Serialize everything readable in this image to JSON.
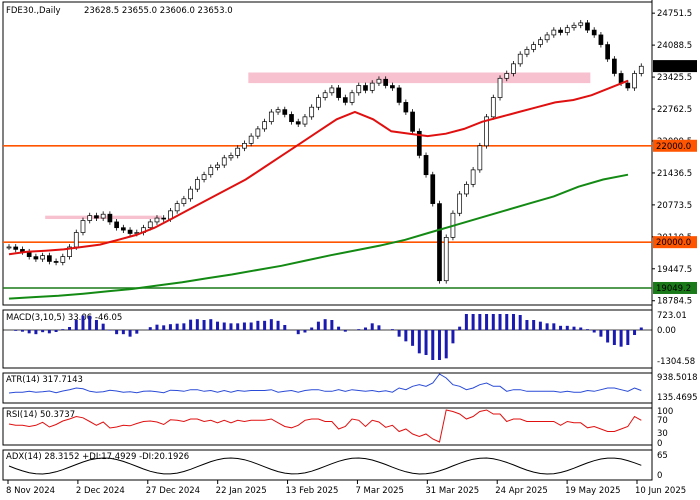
{
  "chart_data": {
    "type": "candlestick",
    "symbol_label": "FDE30.,Daily",
    "ohlc_text": "23628.5 23655.0 23606.0 23653.0",
    "ylim": [
      18800,
      24900
    ],
    "x_labels": [
      "8 Nov 2024",
      "2 Dec 2024",
      "27 Dec 2024",
      "22 Jan 2025",
      "13 Feb 2025",
      "7 Mar 2025",
      "31 Mar 2025",
      "24 Apr 2025",
      "19 May 2025",
      "10 Jun 2025"
    ],
    "y_ticks": [
      "24751.5",
      "24088.5",
      "23425.5",
      "22762.5",
      "22099.5",
      "21436.5",
      "20773.5",
      "20110.5",
      "19447.5",
      "18784.5"
    ],
    "last_price": "23653.0",
    "levels": [
      {
        "value": 22000,
        "label": "22000.0",
        "color": "#ff5500"
      },
      {
        "value": 20000,
        "label": "20000.0",
        "color": "#ff5500"
      },
      {
        "value": 19049.2,
        "label": "19049.2",
        "color": "#1a7a1a"
      }
    ],
    "zones": [
      {
        "from": 20480,
        "to": 20550,
        "start": 0.065,
        "end": 0.245
      },
      {
        "from": 23300,
        "to": 23520,
        "start": 0.378,
        "end": 0.905
      }
    ],
    "candles": [
      19900,
      19850,
      19800,
      19700,
      19650,
      19720,
      19600,
      19580,
      19700,
      19900,
      20200,
      20450,
      20550,
      20500,
      20580,
      20420,
      20300,
      20250,
      20180,
      20200,
      20300,
      20420,
      20500,
      20480,
      20650,
      20800,
      20900,
      21100,
      21300,
      21400,
      21550,
      21600,
      21750,
      21800,
      21950,
      22050,
      22200,
      22350,
      22500,
      22700,
      22750,
      22650,
      22500,
      22450,
      22600,
      22800,
      23000,
      23100,
      23200,
      23000,
      22900,
      23100,
      23250,
      23150,
      23300,
      23380,
      23250,
      23200,
      22900,
      22700,
      22300,
      21800,
      21400,
      20800,
      19200,
      20100,
      20600,
      21000,
      21200,
      21500,
      22000,
      22600,
      23000,
      23400,
      23500,
      23700,
      23900,
      24000,
      24100,
      24200,
      24300,
      24400,
      24350,
      24450,
      24500,
      24550,
      24400,
      24300,
      24100,
      23800,
      23500,
      23300,
      23200,
      23500,
      23650
    ],
    "ma_red": [
      19750,
      19800,
      19820,
      19850,
      19900,
      19950,
      20050,
      20150,
      20300,
      20500,
      20700,
      20900,
      21100,
      21300,
      21550,
      21800,
      22050,
      22300,
      22550,
      22700,
      22550,
      22300,
      22250,
      22200,
      22250,
      22350,
      22500,
      22600,
      22700,
      22800,
      22900,
      22950,
      23050,
      23200,
      23350
    ],
    "ma_green": [
      18830,
      18860,
      18890,
      18930,
      18980,
      19030,
      19100,
      19170,
      19250,
      19330,
      19420,
      19510,
      19620,
      19730,
      19830,
      19930,
      20050,
      20200,
      20350,
      20500,
      20650,
      20800,
      20950,
      21150,
      21300,
      21400
    ],
    "macd_label": "MACD(3,10,5) 33.06 -46.05",
    "macd_ticks": [
      "723.01",
      "0.00",
      "-1304.58"
    ],
    "atr_label": "ATR(14) 317.7143",
    "atr_ticks": [
      "938.5018",
      "135.4695"
    ],
    "rsi_label": "RSI(14) 50.3737",
    "rsi_ticks": [
      "100",
      "70",
      "30",
      "0"
    ],
    "adx_label": "ADX(14) 28.3152 +DI:17.4929 -DI:20.1926",
    "adx_ticks": [
      "65",
      "0"
    ],
    "colors": {
      "up": "#000000",
      "down": "#000000",
      "ma_red": "#e01010",
      "ma_green": "#138a13",
      "zone": "#f7b6c8",
      "level": "#ff5500",
      "hist": "#1a1ab0",
      "blue": "#2a4bd7"
    }
  }
}
